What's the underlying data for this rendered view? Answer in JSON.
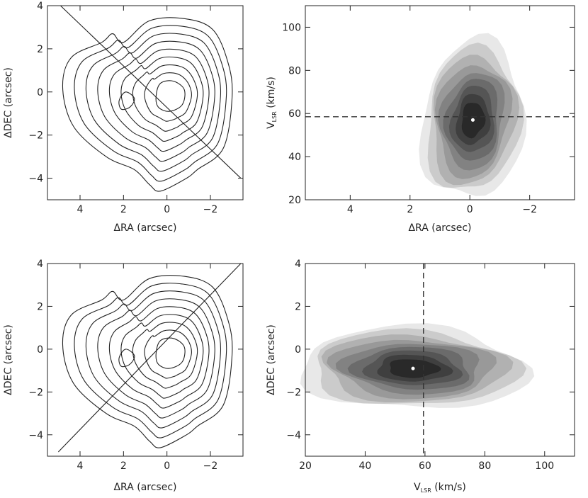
{
  "chart_data": [
    {
      "id": "panel-tl",
      "type": "contour",
      "xlabel": "ΔRA (arcsec)",
      "ylabel": "ΔDEC (arcsec)",
      "xlim": [
        5.5,
        -3.5
      ],
      "ylim": [
        -5,
        4
      ],
      "xticks": [
        4,
        2,
        0,
        -2
      ],
      "yticks": [
        -4,
        -2,
        0,
        2,
        4
      ],
      "xtick_labels": [
        "4",
        "2",
        "0",
        "−2"
      ],
      "ytick_labels": [
        "−4",
        "−2",
        "0",
        "2",
        "4"
      ],
      "cut_line": {
        "x": [
          4.9,
          -3.4
        ],
        "y": [
          4.0,
          -4.0
        ]
      },
      "contours": 9
    },
    {
      "id": "panel-tr",
      "type": "heatmap",
      "xlabel": "ΔRA (arcsec)",
      "ylabel_main": "V",
      "ylabel_sub": "LSR",
      "ylabel_rest": " (km/s)",
      "xlim": [
        5.5,
        -3.5
      ],
      "ylim": [
        20,
        110
      ],
      "xticks": [
        4,
        2,
        0,
        -2
      ],
      "yticks": [
        20,
        40,
        60,
        80,
        100
      ],
      "xtick_labels": [
        "4",
        "2",
        "0",
        "−2"
      ],
      "ytick_labels": [
        "20",
        "40",
        "60",
        "80",
        "100"
      ],
      "hline": 58.5,
      "peak": {
        "x": -0.1,
        "y": 57
      },
      "levels": 9
    },
    {
      "id": "panel-bl",
      "type": "contour",
      "xlabel": "ΔRA (arcsec)",
      "ylabel": "ΔDEC (arcsec)",
      "xlim": [
        5.5,
        -3.5
      ],
      "ylim": [
        -5,
        4
      ],
      "xticks": [
        4,
        2,
        0,
        -2
      ],
      "yticks": [
        -4,
        -2,
        0,
        2,
        4
      ],
      "xtick_labels": [
        "4",
        "2",
        "0",
        "−2"
      ],
      "ytick_labels": [
        "−4",
        "−2",
        "0",
        "2",
        "4"
      ],
      "cut_line": {
        "x": [
          5.0,
          -3.4
        ],
        "y": [
          -4.8,
          4.0
        ]
      },
      "contours": 9
    },
    {
      "id": "panel-br",
      "type": "heatmap",
      "xlabel_main": "V",
      "xlabel_sub": "LSR",
      "xlabel_rest": " (km/s)",
      "ylabel": "ΔDEC (arcsec)",
      "xlim": [
        20,
        110
      ],
      "ylim": [
        -5,
        4
      ],
      "xticks": [
        20,
        40,
        60,
        80,
        100
      ],
      "yticks": [
        -4,
        -2,
        0,
        2,
        4
      ],
      "xtick_labels": [
        "20",
        "40",
        "60",
        "80",
        "100"
      ],
      "ytick_labels": [
        "−4",
        "−2",
        "0",
        "2",
        "4"
      ],
      "vline": 59.5,
      "peak": {
        "x": 56,
        "y": -0.9
      },
      "levels": 9
    }
  ]
}
